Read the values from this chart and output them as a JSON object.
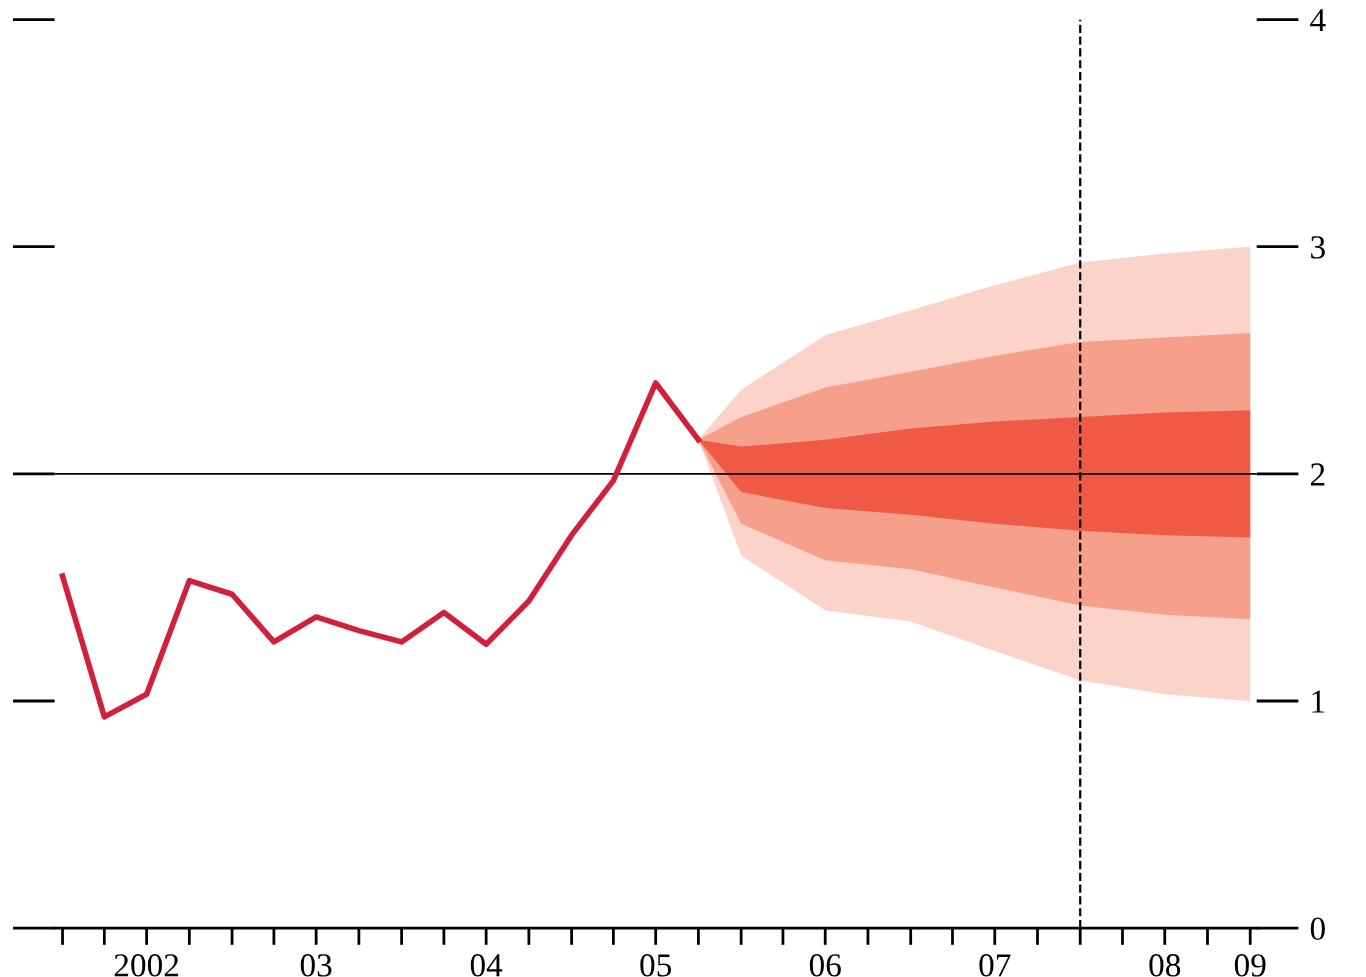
{
  "chart_data": {
    "type": "line",
    "xlim": [
      "2001-12-15",
      "2009-01-15"
    ],
    "ylim": [
      0,
      4
    ],
    "yticks": [
      0,
      1,
      2,
      3,
      4
    ],
    "xticks": [
      {
        "value": "2002-07",
        "label": "2002"
      },
      {
        "value": "2003-07",
        "label": "03"
      },
      {
        "value": "2004-07",
        "label": "04"
      },
      {
        "value": "2005-07",
        "label": "05"
      },
      {
        "value": "2006-07",
        "label": "06"
      },
      {
        "value": "2007-07",
        "label": "07"
      },
      {
        "value": "2008-07",
        "label": "08"
      },
      {
        "value": "2009-01",
        "label": "09"
      }
    ],
    "grid": false,
    "line_style": "solid",
    "marker": "none",
    "ref_lines": [
      {
        "axis": "y",
        "value": 2,
        "color": "#000000",
        "line_style": "solid"
      },
      {
        "axis": "x",
        "value": "2008-01",
        "color": "#000000",
        "line_style": "dashed"
      }
    ],
    "series": [
      {
        "color": "#fbd3c8",
        "x": [
          "2005-10",
          "2006-01",
          "2006-07",
          "2007-01",
          "2007-07",
          "2008-01",
          "2008-07",
          "2009-01"
        ],
        "values": [
          null,
          null,
          null,
          null,
          null,
          null,
          null,
          null
        ],
        "upper": [
          2.15,
          2.37,
          2.61,
          2.72,
          2.83,
          2.93,
          2.97,
          3.0
        ],
        "lower": [
          2.15,
          1.64,
          1.4,
          1.35,
          1.22,
          1.09,
          1.03,
          1.0
        ]
      },
      {
        "color": "#f6a08c",
        "x": [
          "2005-10",
          "2006-01",
          "2006-07",
          "2007-01",
          "2007-07",
          "2008-01",
          "2008-07",
          "2009-01"
        ],
        "values": [
          null,
          null,
          null,
          null,
          null,
          null,
          null,
          null
        ],
        "upper": [
          2.15,
          2.25,
          2.38,
          2.45,
          2.52,
          2.58,
          2.6,
          2.62
        ],
        "lower": [
          2.15,
          1.78,
          1.62,
          1.58,
          1.5,
          1.42,
          1.38,
          1.36
        ]
      },
      {
        "color": "#ee5a45",
        "x": [
          "2005-10",
          "2006-01",
          "2006-07",
          "2007-01",
          "2007-07",
          "2008-01",
          "2008-07",
          "2009-01"
        ],
        "values": [
          null,
          null,
          null,
          null,
          null,
          null,
          null,
          null
        ],
        "upper": [
          2.15,
          2.12,
          2.15,
          2.2,
          2.23,
          2.25,
          2.27,
          2.28
        ],
        "lower": [
          2.15,
          1.92,
          1.85,
          1.82,
          1.78,
          1.75,
          1.73,
          1.72
        ]
      },
      {
        "color": "#d0203a",
        "x": [
          "2002-01",
          "2002-04",
          "2002-07",
          "2002-10",
          "2003-01",
          "2003-04",
          "2003-07",
          "2003-10",
          "2004-01",
          "2004-04",
          "2004-07",
          "2004-10",
          "2005-01",
          "2005-04",
          "2005-07",
          "2005-10"
        ],
        "values": [
          1.55,
          0.93,
          1.03,
          1.53,
          1.47,
          1.26,
          1.37,
          1.31,
          1.26,
          1.39,
          1.25,
          1.44,
          1.73,
          1.97,
          2.4,
          2.15
        ]
      }
    ]
  }
}
